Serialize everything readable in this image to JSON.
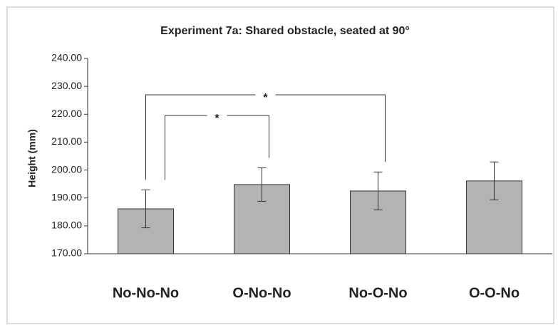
{
  "chart_data": {
    "type": "bar",
    "title": "Experiment 7a: Shared obstacle, seated at 90°",
    "ylabel": "Height (mm)",
    "categories": [
      "No-No-No",
      "O-No-No",
      "No-O-No",
      "O-O-No"
    ],
    "values": [
      186.1,
      194.8,
      192.5,
      196.1
    ],
    "errors": [
      6.8,
      6.0,
      6.8,
      6.8
    ],
    "color": "#b3b3b3",
    "ylim": [
      170,
      240
    ],
    "yticks": [
      {
        "value": 170,
        "label": "170.00"
      },
      {
        "value": 180,
        "label": "180.00"
      },
      {
        "value": 190,
        "label": "190.00"
      },
      {
        "value": 200,
        "label": "200.00"
      },
      {
        "value": 210,
        "label": "210.00"
      },
      {
        "value": 220,
        "label": "220.00"
      },
      {
        "value": 230,
        "label": "230.00"
      },
      {
        "value": 240,
        "label": "240.00"
      }
    ],
    "significance": [
      {
        "from": 0,
        "to": 2,
        "label": "*"
      },
      {
        "from": 0,
        "to": 1,
        "label": "*"
      }
    ]
  }
}
